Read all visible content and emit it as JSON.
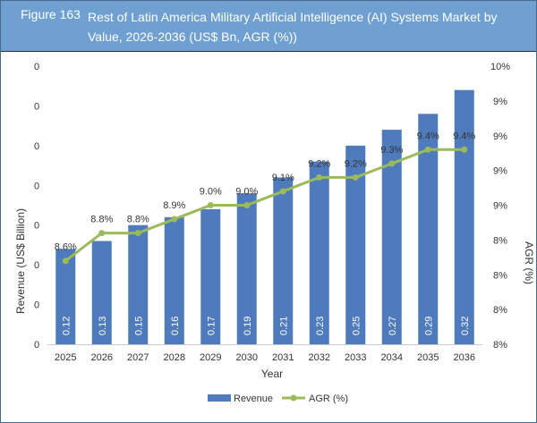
{
  "header": {
    "figure_number": "Figure 163",
    "title": "Rest of Latin America Military Artificial Intelligence (AI) Systems Market by Value, 2026-2036 (US$ Bn, AGR (%))"
  },
  "colors": {
    "header": "#6fa0d2",
    "bar": "#4f7bbd",
    "line": "#9bbb59"
  },
  "chart_data": {
    "type": "bar+line",
    "categories": [
      "2025",
      "2026",
      "2027",
      "2028",
      "2029",
      "2030",
      "2031",
      "2032",
      "2033",
      "2034",
      "2035",
      "2036"
    ],
    "series": [
      {
        "name": "Revenue",
        "type": "bar",
        "axis": "left",
        "values": [
          0.12,
          0.13,
          0.15,
          0.16,
          0.17,
          0.19,
          0.21,
          0.23,
          0.25,
          0.27,
          0.29,
          0.32
        ],
        "labels": [
          "0.12",
          "0.13",
          "0.15",
          "0.16",
          "0.17",
          "0.19",
          "0.21",
          "0.23",
          "0.25",
          "0.27",
          "0.29",
          "0.32"
        ]
      },
      {
        "name": "AGR (%)",
        "type": "line",
        "axis": "right",
        "values": [
          8.6,
          8.8,
          8.8,
          8.9,
          9.0,
          9.0,
          9.1,
          9.2,
          9.2,
          9.3,
          9.4,
          9.4
        ],
        "labels": [
          "8.6%",
          "8.8%",
          "8.8%",
          "8.9%",
          "9.0%",
          "9.0%",
          "9.1%",
          "9.2%",
          "9.2%",
          "9.3%",
          "9.4%",
          "9.4%"
        ]
      }
    ],
    "xlabel": "Year",
    "ylabel": "Revenue (US$ Billion)",
    "y2label": "AGR (%)",
    "ylim": [
      0,
      0.35
    ],
    "y_tick_labels": [
      "0",
      "0",
      "0",
      "0",
      "0",
      "0",
      "0",
      "0"
    ],
    "y2lim": [
      8,
      10
    ],
    "y2_tick_labels": [
      "8%",
      "8%",
      "8%",
      "8%",
      "9%",
      "9%",
      "9%",
      "9%",
      "10%"
    ],
    "legend": "bottom",
    "grid": false
  }
}
